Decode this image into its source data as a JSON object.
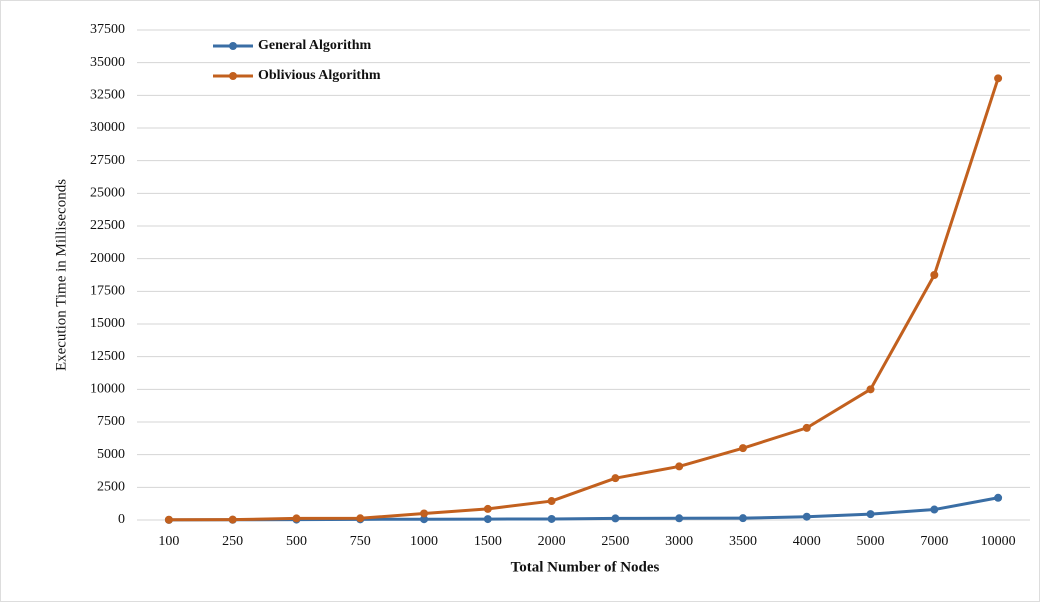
{
  "chart_data": {
    "type": "line",
    "x_label": "Total Number  of Nodes",
    "y_label": "Execution Time  in Milliseconds",
    "categories": [
      "100",
      "250",
      "500",
      "750",
      "1000",
      "1500",
      "2000",
      "2500",
      "3000",
      "3500",
      "4000",
      "5000",
      "7000",
      "10000"
    ],
    "series": [
      {
        "name": "General Algorithm",
        "color": "#3a6ea5",
        "values": [
          10,
          15,
          30,
          50,
          60,
          70,
          80,
          120,
          130,
          140,
          250,
          450,
          800,
          1700
        ]
      },
      {
        "name": "Oblivious Algorithm",
        "color": "#c2601e",
        "values": [
          20,
          30,
          120,
          130,
          500,
          850,
          1450,
          3200,
          4100,
          5500,
          7050,
          10000,
          18750,
          33800
        ]
      }
    ],
    "ylim": [
      0,
      37500
    ],
    "yticks": [
      0,
      2500,
      5000,
      7500,
      10000,
      12500,
      15000,
      17500,
      20000,
      22500,
      25000,
      27500,
      30000,
      32500,
      35000,
      37500
    ],
    "grid": true,
    "legend": "upper left"
  }
}
